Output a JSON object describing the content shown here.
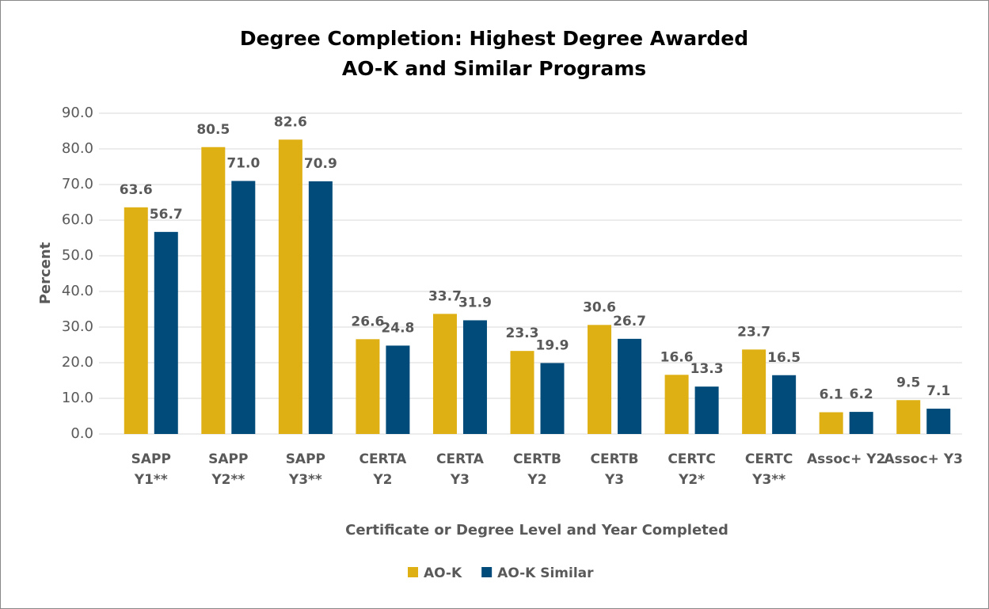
{
  "chart_data": {
    "type": "bar",
    "title": "Degree Completion: Highest Degree Awarded",
    "subtitle": "AO-K and Similar Programs",
    "y_label": "Percent",
    "x_label": "Certificate or Degree Level and Year Completed",
    "categories": [
      [
        "SAPP",
        "Y1**"
      ],
      [
        "SAPP",
        "Y2**"
      ],
      [
        "SAPP",
        "Y3**"
      ],
      [
        "CERTA",
        "Y2"
      ],
      [
        "CERTA",
        "Y3"
      ],
      [
        "CERTB",
        "Y2"
      ],
      [
        "CERTB",
        "Y3"
      ],
      [
        "CERTC",
        "Y2*"
      ],
      [
        "CERTC",
        "Y3**"
      ],
      [
        "Assoc+ Y2"
      ],
      [
        "Assoc+ Y3"
      ]
    ],
    "series": [
      {
        "name": "AO-K",
        "color": "#dfb013",
        "values": [
          63.6,
          80.5,
          82.6,
          26.6,
          33.7,
          23.3,
          30.6,
          16.6,
          23.7,
          6.1,
          9.5
        ],
        "value_labels": [
          "63.6",
          "80.5",
          "82.6",
          "26.6",
          "33.7",
          "23.3",
          "30.6",
          "16.6",
          "23.7",
          "6.1",
          "9.5"
        ]
      },
      {
        "name": "AO-K Similar",
        "color": "#004b79",
        "values": [
          56.7,
          71,
          70.9,
          24.8,
          31.9,
          19.9,
          26.7,
          13.3,
          16.5,
          6.2,
          7.1
        ],
        "value_labels": [
          "56.7",
          "71.0",
          "70.9",
          "24.8",
          "31.9",
          "19.9",
          "26.7",
          "13.3",
          "16.5",
          "6.2",
          "7.1"
        ]
      }
    ],
    "ylim": [
      0,
      90
    ],
    "yticks": [
      {
        "value": 0,
        "label": "0.0"
      },
      {
        "value": 10,
        "label": "10.0"
      },
      {
        "value": 20,
        "label": "20.0"
      },
      {
        "value": 30,
        "label": "30.0"
      },
      {
        "value": 40,
        "label": "40.0"
      },
      {
        "value": 50,
        "label": "50.0"
      },
      {
        "value": 60,
        "label": "60.0"
      },
      {
        "value": 70,
        "label": "70.0"
      },
      {
        "value": 80,
        "label": "80.0"
      },
      {
        "value": 90,
        "label": "90.0"
      }
    ],
    "grid": true,
    "legend": "bottom"
  }
}
